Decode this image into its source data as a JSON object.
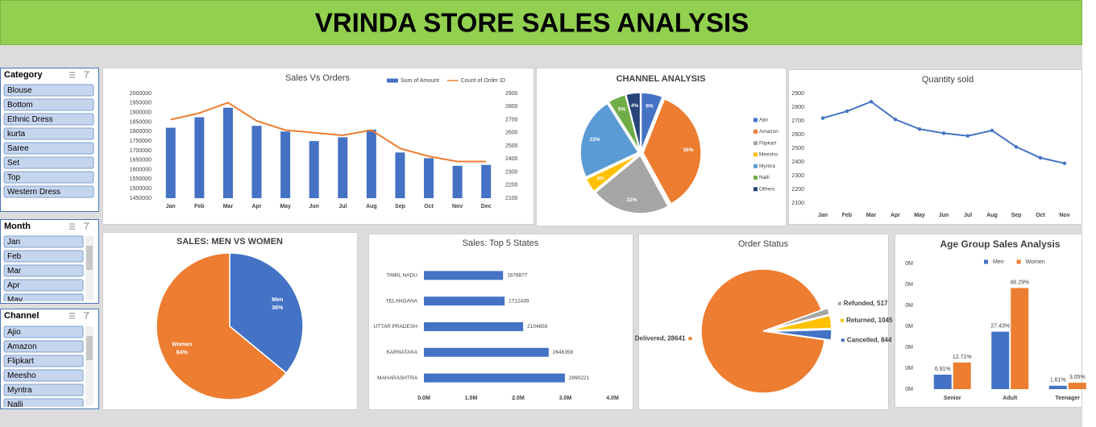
{
  "header": {
    "title": "VRINDA STORE SALES ANALYSIS"
  },
  "slicers": [
    {
      "title": "Category",
      "items": [
        "Blouse",
        "Bottom",
        "Ethnic Dress",
        "kurta",
        "Saree",
        "Set",
        "Top",
        "Western Dress"
      ]
    },
    {
      "title": "Month",
      "items": [
        "Jan",
        "Feb",
        "Mar",
        "Apr",
        "May"
      ]
    },
    {
      "title": "Channel",
      "items": [
        "Ajio",
        "Amazon",
        "Flipkart",
        "Meesho",
        "Myntra",
        "Nalli"
      ]
    }
  ],
  "chart_data": [
    {
      "type": "combo",
      "title": "Sales Vs Orders",
      "categories": [
        "Jan",
        "Feb",
        "Mar",
        "Apr",
        "May",
        "Jun",
        "Jul",
        "Aug",
        "Sep",
        "Oct",
        "Nov",
        "Dec"
      ],
      "series": [
        {
          "name": "Sum of Amount",
          "type": "bar",
          "color": "#4472c4",
          "values": [
            1820000,
            1875000,
            1925000,
            1830000,
            1800000,
            1750000,
            1770000,
            1810000,
            1690000,
            1660000,
            1620000,
            1625000
          ]
        },
        {
          "name": "Count of Order ID",
          "type": "line",
          "axis": "y2",
          "color": "#ed7d31",
          "values": [
            2700,
            2750,
            2830,
            2690,
            2620,
            2600,
            2580,
            2620,
            2480,
            2420,
            2380,
            2380
          ]
        }
      ],
      "ylim": [
        1450000,
        2000000
      ],
      "yticks": [
        1450000,
        1500000,
        1550000,
        1600000,
        1650000,
        1700000,
        1750000,
        1800000,
        1850000,
        1900000,
        1950000,
        2000000
      ],
      "y2lim": [
        2100,
        2900
      ],
      "y2ticks": [
        2100,
        2200,
        2300,
        2400,
        2500,
        2600,
        2700,
        2800,
        2900
      ]
    },
    {
      "type": "pie",
      "title": "CHANNEL ANALYSIS",
      "categories": [
        "Ajio",
        "Amazon",
        "Flipkart",
        "Meesho",
        "Myntra",
        "Nalli",
        "Others"
      ],
      "values": [
        6,
        36,
        22,
        4,
        23,
        5,
        4
      ],
      "value_labels": [
        "6%",
        "36%",
        "22%",
        "4%",
        "23%",
        "5%",
        "4%"
      ],
      "colors": [
        "#4472c4",
        "#ed7d31",
        "#a5a5a5",
        "#ffc000",
        "#5b9bd5",
        "#70ad47",
        "#264478"
      ],
      "legend": "right"
    },
    {
      "type": "line",
      "title": "Quantity sold",
      "categories": [
        "Jan",
        "Feb",
        "Mar",
        "Apr",
        "May",
        "Jun",
        "Jul",
        "Aug",
        "Sep",
        "Oct",
        "Nov"
      ],
      "values": [
        2720,
        2770,
        2840,
        2710,
        2640,
        2610,
        2590,
        2630,
        2510,
        2430,
        2390
      ],
      "color": "#4472c4",
      "ylim": [
        2100,
        2900
      ],
      "yticks": [
        2100,
        2200,
        2300,
        2400,
        2500,
        2600,
        2700,
        2800,
        2900
      ]
    },
    {
      "type": "pie",
      "title": "SALES: MEN VS WOMEN",
      "categories": [
        "Men",
        "Women"
      ],
      "values": [
        36,
        64
      ],
      "value_labels": [
        "36%",
        "64%"
      ],
      "colors": [
        "#4472c4",
        "#ed7d31"
      ]
    },
    {
      "type": "hbar",
      "title": "Sales: Top 5 States",
      "categories": [
        "TAMIL NADU",
        "TELANGANA",
        "UTTAR PRADESH",
        "KARNATAKA",
        "MAHARASHTRA"
      ],
      "values": [
        1678877,
        1712439,
        2104659,
        2646358,
        2990221
      ],
      "color": "#4472c4",
      "xlim": [
        0,
        4000000
      ],
      "xticks": [
        {
          "value": 0,
          "label": "0.0M"
        },
        {
          "value": 1000000,
          "label": "1.0M"
        },
        {
          "value": 2000000,
          "label": "2.0M"
        },
        {
          "value": 3000000,
          "label": "3.0M"
        },
        {
          "value": 4000000,
          "label": "4.0M"
        }
      ]
    },
    {
      "type": "pie",
      "title": "Order Status",
      "categories": [
        "Delivered",
        "Refunded",
        "Returned",
        "Cancelled"
      ],
      "values": [
        28641,
        517,
        1045,
        844
      ],
      "value_labels": [
        "Delivered, 28641",
        "Refunded, 517",
        "Returned, 1045",
        "Cancelled, 844"
      ],
      "colors": [
        "#ed7d31",
        "#a5a5a5",
        "#ffc000",
        "#4472c4"
      ]
    },
    {
      "type": "bar",
      "title": "Age Group Sales Analysis",
      "categories": [
        "Senior",
        "Adult",
        "Teenager"
      ],
      "series": [
        {
          "name": "Men",
          "color": "#4472c4",
          "values": [
            6.91,
            27.43,
            1.61
          ],
          "value_labels": [
            "6.91%",
            "27.43%",
            "1.61%"
          ]
        },
        {
          "name": "Women",
          "color": "#ed7d31",
          "values": [
            12.71,
            48.29,
            3.05
          ],
          "value_labels": [
            "12.71%",
            "48.29%",
            "3.05%"
          ]
        }
      ],
      "ylim": [
        0,
        60
      ],
      "yticks": [
        {
          "value": 0,
          "label": "0M"
        },
        {
          "value": 10,
          "label": "0M"
        },
        {
          "value": 20,
          "label": "0M"
        },
        {
          "value": 30,
          "label": "0M"
        },
        {
          "value": 40,
          "label": "0M"
        },
        {
          "value": 50,
          "label": "0M"
        },
        {
          "value": 60,
          "label": "0M"
        }
      ],
      "legend": "top"
    }
  ]
}
